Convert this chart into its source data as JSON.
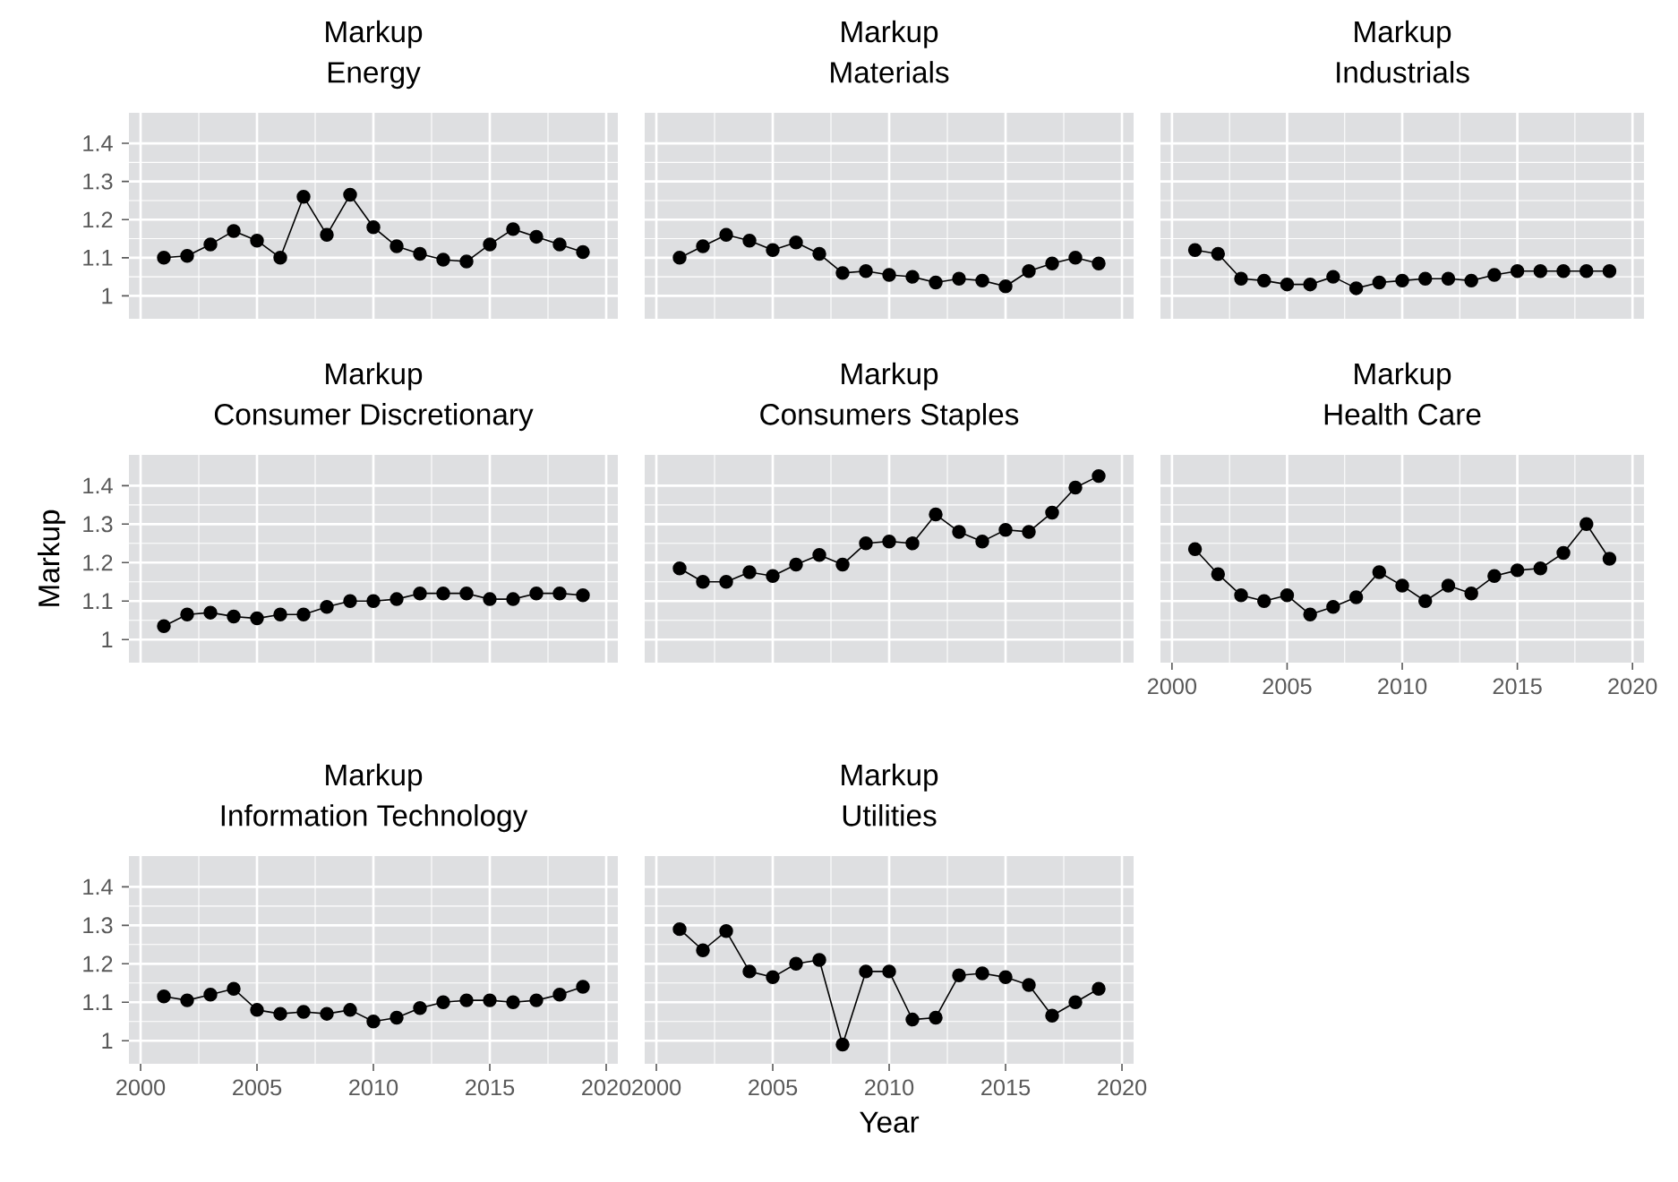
{
  "chart_data": [
    {
      "type": "line",
      "title": "Markup",
      "subtitle": "Energy",
      "color": "#000000",
      "marker": "circle",
      "grid": true,
      "tick_labels": "y",
      "xlim": [
        1999.5,
        2020.5
      ],
      "ylim": [
        0.94,
        1.48
      ],
      "xticks": [
        2000,
        2005,
        2010,
        2015,
        2020
      ],
      "yticks": [
        1,
        1.1,
        1.2,
        1.3,
        1.4
      ],
      "x": [
        2001,
        2002,
        2003,
        2004,
        2005,
        2006,
        2007,
        2008,
        2009,
        2010,
        2011,
        2012,
        2013,
        2014,
        2015,
        2016,
        2017,
        2018,
        2019
      ],
      "values": [
        1.1,
        1.105,
        1.135,
        1.17,
        1.145,
        1.1,
        1.26,
        1.16,
        1.265,
        1.18,
        1.13,
        1.11,
        1.095,
        1.09,
        1.135,
        1.175,
        1.155,
        1.135,
        1.115
      ]
    },
    {
      "type": "line",
      "title": "Markup",
      "subtitle": "Materials",
      "color": "#000000",
      "marker": "circle",
      "grid": true,
      "tick_labels": false,
      "xlim": [
        1999.5,
        2020.5
      ],
      "ylim": [
        0.94,
        1.48
      ],
      "xticks": [
        2000,
        2005,
        2010,
        2015,
        2020
      ],
      "yticks": [
        1,
        1.1,
        1.2,
        1.3,
        1.4
      ],
      "x": [
        2001,
        2002,
        2003,
        2004,
        2005,
        2006,
        2007,
        2008,
        2009,
        2010,
        2011,
        2012,
        2013,
        2014,
        2015,
        2016,
        2017,
        2018,
        2019
      ],
      "values": [
        1.1,
        1.13,
        1.16,
        1.145,
        1.12,
        1.14,
        1.11,
        1.06,
        1.065,
        1.055,
        1.05,
        1.035,
        1.045,
        1.04,
        1.025,
        1.065,
        1.085,
        1.1,
        1.085
      ]
    },
    {
      "type": "line",
      "title": "Markup",
      "subtitle": "Industrials",
      "color": "#000000",
      "marker": "circle",
      "grid": true,
      "tick_labels": false,
      "xlim": [
        1999.5,
        2020.5
      ],
      "ylim": [
        0.94,
        1.48
      ],
      "xticks": [
        2000,
        2005,
        2010,
        2015,
        2020
      ],
      "yticks": [
        1,
        1.1,
        1.2,
        1.3,
        1.4
      ],
      "x": [
        2001,
        2002,
        2003,
        2004,
        2005,
        2006,
        2007,
        2008,
        2009,
        2010,
        2011,
        2012,
        2013,
        2014,
        2015,
        2016,
        2017,
        2018,
        2019
      ],
      "values": [
        1.12,
        1.11,
        1.045,
        1.04,
        1.03,
        1.03,
        1.05,
        1.02,
        1.035,
        1.04,
        1.045,
        1.045,
        1.04,
        1.055,
        1.065,
        1.065,
        1.065,
        1.065,
        1.065
      ]
    },
    {
      "type": "line",
      "title": "Markup",
      "subtitle": "Consumer Discretionary",
      "ylabel": "Markup",
      "color": "#000000",
      "marker": "circle",
      "grid": true,
      "tick_labels": "y",
      "xlim": [
        1999.5,
        2020.5
      ],
      "ylim": [
        0.94,
        1.48
      ],
      "xticks": [
        2000,
        2005,
        2010,
        2015,
        2020
      ],
      "yticks": [
        1,
        1.1,
        1.2,
        1.3,
        1.4
      ],
      "x": [
        2001,
        2002,
        2003,
        2004,
        2005,
        2006,
        2007,
        2008,
        2009,
        2010,
        2011,
        2012,
        2013,
        2014,
        2015,
        2016,
        2017,
        2018,
        2019
      ],
      "values": [
        1.035,
        1.065,
        1.07,
        1.06,
        1.055,
        1.065,
        1.065,
        1.085,
        1.1,
        1.1,
        1.105,
        1.12,
        1.12,
        1.12,
        1.105,
        1.105,
        1.12,
        1.12,
        1.115
      ]
    },
    {
      "type": "line",
      "title": "Markup",
      "subtitle": "Consumers Staples",
      "color": "#000000",
      "marker": "circle",
      "grid": true,
      "tick_labels": false,
      "xlim": [
        1999.5,
        2020.5
      ],
      "ylim": [
        0.94,
        1.48
      ],
      "xticks": [
        2000,
        2005,
        2010,
        2015,
        2020
      ],
      "yticks": [
        1,
        1.1,
        1.2,
        1.3,
        1.4
      ],
      "x": [
        2001,
        2002,
        2003,
        2004,
        2005,
        2006,
        2007,
        2008,
        2009,
        2010,
        2011,
        2012,
        2013,
        2014,
        2015,
        2016,
        2017,
        2018,
        2019
      ],
      "values": [
        1.185,
        1.15,
        1.15,
        1.175,
        1.165,
        1.195,
        1.22,
        1.195,
        1.25,
        1.255,
        1.25,
        1.325,
        1.28,
        1.255,
        1.285,
        1.28,
        1.33,
        1.395,
        1.425
      ]
    },
    {
      "type": "line",
      "title": "Markup",
      "subtitle": "Health Care",
      "color": "#000000",
      "marker": "circle",
      "grid": true,
      "tick_labels": "x",
      "xlim": [
        1999.5,
        2020.5
      ],
      "ylim": [
        0.94,
        1.48
      ],
      "xticks": [
        2000,
        2005,
        2010,
        2015,
        2020
      ],
      "yticks": [
        1,
        1.1,
        1.2,
        1.3,
        1.4
      ],
      "x": [
        2001,
        2002,
        2003,
        2004,
        2005,
        2006,
        2007,
        2008,
        2009,
        2010,
        2011,
        2012,
        2013,
        2014,
        2015,
        2016,
        2017,
        2018,
        2019
      ],
      "values": [
        1.235,
        1.17,
        1.115,
        1.1,
        1.115,
        1.065,
        1.085,
        1.11,
        1.175,
        1.14,
        1.1,
        1.14,
        1.12,
        1.165,
        1.18,
        1.185,
        1.225,
        1.3,
        1.21
      ]
    },
    {
      "type": "line",
      "title": "Markup",
      "subtitle": "Information Technology",
      "color": "#000000",
      "marker": "circle",
      "grid": true,
      "xlim": [
        1999.5,
        2020.5
      ],
      "ylim": [
        0.94,
        1.48
      ],
      "xticks": [
        2000,
        2005,
        2010,
        2015,
        2020
      ],
      "yticks": [
        1,
        1.1,
        1.2,
        1.3,
        1.4
      ],
      "x": [
        2001,
        2002,
        2003,
        2004,
        2005,
        2006,
        2007,
        2008,
        2009,
        2010,
        2011,
        2012,
        2013,
        2014,
        2015,
        2016,
        2017,
        2018,
        2019
      ],
      "values": [
        1.115,
        1.105,
        1.12,
        1.135,
        1.08,
        1.07,
        1.075,
        1.07,
        1.08,
        1.05,
        1.06,
        1.085,
        1.1,
        1.105,
        1.105,
        1.1,
        1.105,
        1.12,
        1.14
      ]
    },
    {
      "type": "line",
      "title": "Markup",
      "subtitle": "Utilities",
      "xlabel": "Year",
      "color": "#000000",
      "marker": "circle",
      "grid": true,
      "tick_labels": "x",
      "xlim": [
        1999.5,
        2020.5
      ],
      "ylim": [
        0.94,
        1.48
      ],
      "xticks": [
        2000,
        2005,
        2010,
        2015,
        2020
      ],
      "yticks": [
        1,
        1.1,
        1.2,
        1.3,
        1.4
      ],
      "x": [
        2001,
        2002,
        2003,
        2004,
        2005,
        2006,
        2007,
        2008,
        2009,
        2010,
        2011,
        2012,
        2013,
        2014,
        2015,
        2016,
        2017,
        2018,
        2019
      ],
      "values": [
        1.29,
        1.235,
        1.285,
        1.18,
        1.165,
        1.2,
        1.21,
        0.99,
        1.18,
        1.18,
        1.055,
        1.06,
        1.17,
        1.175,
        1.165,
        1.145,
        1.065,
        1.1,
        1.135
      ]
    }
  ]
}
